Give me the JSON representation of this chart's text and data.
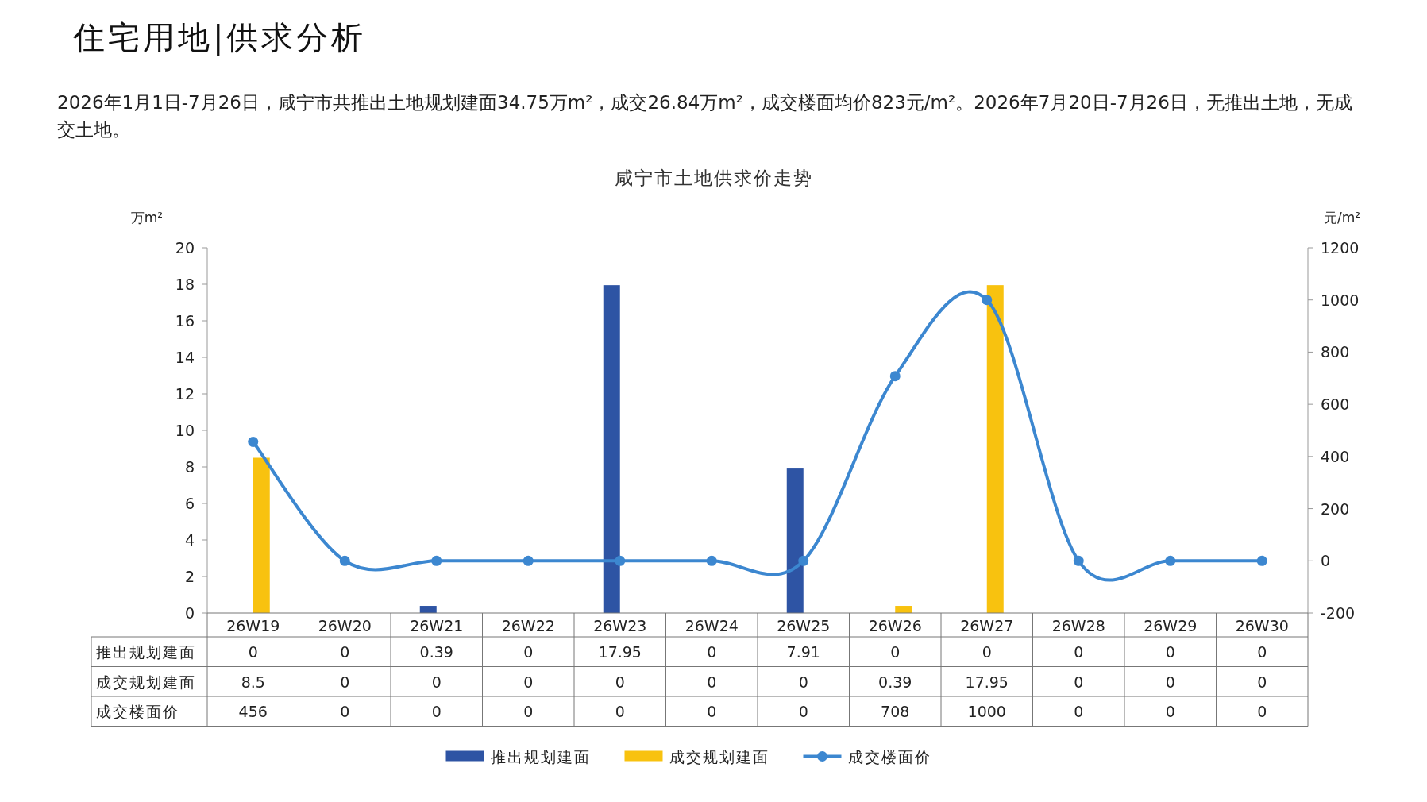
{
  "chart_data": {
    "type": "bar",
    "title": "咸宁市土地供求价走势",
    "annotations": [
      "住宅用地|供求分析",
      "2026年1月1日-7月26日，咸宁市共推出土地规划建面34.75万m²，成交26.84万m²，成交楼面均价823元/m²。2026年7月20日-7月26日，无推出土地，无成交土地。"
    ],
    "ylabel": "万m²",
    "y2label": "元/m²",
    "categories": [
      "26W19",
      "26W20",
      "26W21",
      "26W22",
      "26W23",
      "26W24",
      "26W25",
      "26W26",
      "26W27",
      "26W28",
      "26W29",
      "26W30"
    ],
    "series": [
      {
        "name": "推出规划建面",
        "color": "#2e54a4",
        "values": [
          0,
          0,
          0.39,
          0,
          17.95,
          0,
          7.91,
          0,
          0,
          0,
          0,
          0
        ]
      },
      {
        "name": "成交规划建面",
        "color": "#f8c20f",
        "values": [
          8.5,
          0,
          0,
          0,
          0,
          0,
          0,
          0.39,
          17.95,
          0,
          0,
          0
        ]
      },
      {
        "name": "成交楼面价",
        "type": "line",
        "axis": "y2",
        "color": "#3c87d0",
        "values": [
          456,
          0,
          0,
          0,
          0,
          0,
          0,
          708,
          1000,
          0,
          0,
          0
        ]
      }
    ],
    "ylim": [
      0,
      20
    ],
    "yticks": [
      0,
      2,
      4,
      6,
      8,
      10,
      12,
      14,
      16,
      18,
      20
    ],
    "y2lim": [
      -200,
      1200
    ],
    "y2ticks": [
      -200,
      0,
      200,
      400,
      600,
      800,
      1000,
      1200
    ],
    "marker": "circle",
    "legend": "bottom",
    "data_labels": true
  }
}
